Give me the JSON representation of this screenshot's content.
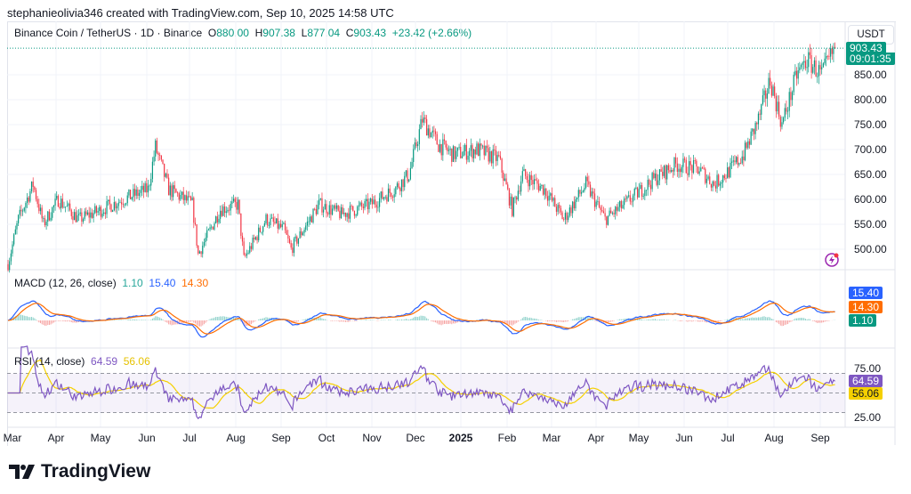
{
  "credit": "stephanieolivia346 created with TradingView.com, Sep 10, 2025 14:58 UTC",
  "legend": {
    "symbol": "Binance Coin / TetherUS · 1D · Binance",
    "o_label": "O",
    "o": "880.00",
    "h_label": "H",
    "h": "907.38",
    "l_label": "L",
    "l": "877.04",
    "c_label": "C",
    "c": "903.43",
    "change": "+23.42 (+2.66%)"
  },
  "currency": "USDT",
  "price_tag": {
    "price": "903.43",
    "countdown": "09:01:35",
    "color": "#089981"
  },
  "macd": {
    "label": "MACD (12, 26, close)",
    "hist": "1.10",
    "macd": "15.40",
    "signal": "14.30",
    "colors": {
      "hist": "#26a69a",
      "macd": "#2962ff",
      "signal": "#ff6d00"
    }
  },
  "rsi": {
    "label": "RSI (14, close)",
    "rsi": "64.59",
    "ma": "56.06",
    "ticks": [
      "75.00",
      "25.00"
    ],
    "colors": {
      "rsi": "#7e57c2",
      "ma": "#f5d000"
    }
  },
  "colors": {
    "up": "#089981",
    "down": "#f23645"
  },
  "chart_data": {
    "type": "candlestick",
    "symbol": "BNBUSDT",
    "interval": "1D",
    "price_ticks": [
      "850.00",
      "800.00",
      "750.00",
      "700.00",
      "650.00",
      "600.00",
      "550.00",
      "500.00"
    ],
    "ylim": [
      455,
      910
    ],
    "x_ticks": [
      "Mar",
      "Apr",
      "May",
      "Jun",
      "Jul",
      "Aug",
      "Sep",
      "Oct",
      "Nov",
      "Dec",
      "2025",
      "Feb",
      "Mar",
      "Apr",
      "May",
      "Jun",
      "Jul",
      "Aug",
      "Sep"
    ],
    "close_keypoints": [
      [
        "2024-02-27",
        470
      ],
      [
        "2024-03-05",
        560
      ],
      [
        "2024-03-15",
        630
      ],
      [
        "2024-03-22",
        550
      ],
      [
        "2024-04-01",
        600
      ],
      [
        "2024-04-15",
        560
      ],
      [
        "2024-05-01",
        580
      ],
      [
        "2024-05-15",
        600
      ],
      [
        "2024-06-01",
        620
      ],
      [
        "2024-06-06",
        705
      ],
      [
        "2024-06-15",
        620
      ],
      [
        "2024-07-01",
        590
      ],
      [
        "2024-07-05",
        490
      ],
      [
        "2024-07-20",
        580
      ],
      [
        "2024-08-01",
        590
      ],
      [
        "2024-08-05",
        480
      ],
      [
        "2024-08-20",
        560
      ],
      [
        "2024-09-01",
        540
      ],
      [
        "2024-09-06",
        500
      ],
      [
        "2024-09-25",
        590
      ],
      [
        "2024-10-10",
        570
      ],
      [
        "2024-10-30",
        590
      ],
      [
        "2024-11-15",
        620
      ],
      [
        "2024-11-25",
        650
      ],
      [
        "2024-12-04",
        760
      ],
      [
        "2024-12-15",
        710
      ],
      [
        "2024-12-25",
        690
      ],
      [
        "2025-01-10",
        700
      ],
      [
        "2025-01-25",
        680
      ],
      [
        "2025-02-03",
        580
      ],
      [
        "2025-02-10",
        650
      ],
      [
        "2025-02-25",
        620
      ],
      [
        "2025-03-10",
        560
      ],
      [
        "2025-03-25",
        630
      ],
      [
        "2025-04-07",
        560
      ],
      [
        "2025-04-20",
        590
      ],
      [
        "2025-05-10",
        640
      ],
      [
        "2025-05-25",
        670
      ],
      [
        "2025-06-10",
        660
      ],
      [
        "2025-06-20",
        630
      ],
      [
        "2025-07-01",
        660
      ],
      [
        "2025-07-10",
        690
      ],
      [
        "2025-07-20",
        760
      ],
      [
        "2025-07-28",
        840
      ],
      [
        "2025-08-05",
        750
      ],
      [
        "2025-08-15",
        850
      ],
      [
        "2025-08-22",
        880
      ],
      [
        "2025-09-01",
        850
      ],
      [
        "2025-09-10",
        903
      ]
    ]
  },
  "logo": "TradingView"
}
